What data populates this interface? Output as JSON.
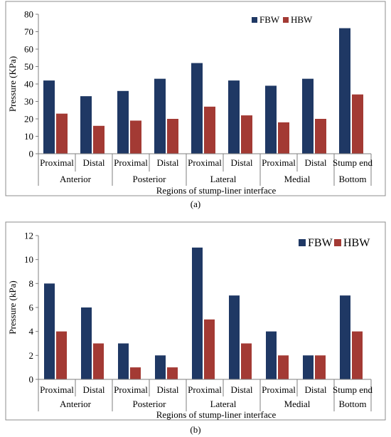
{
  "colors": {
    "FBW": "#1f3864",
    "HBW": "#a33a34",
    "axis": "#7f7f7f",
    "frame": "#8c8c8c"
  },
  "chart_data": [
    {
      "type": "bar",
      "panel_label": "(a)",
      "categories": [
        "Proximal",
        "Distal",
        "Proximal",
        "Distal",
        "Proximal",
        "Distal",
        "Proximal",
        "Distal",
        "Stump end"
      ],
      "groups": [
        {
          "label": "Anterior",
          "span": 2
        },
        {
          "label": "Posterior",
          "span": 2
        },
        {
          "label": "Lateral",
          "span": 2
        },
        {
          "label": "Medial",
          "span": 2
        },
        {
          "label": "Bottom",
          "span": 1
        }
      ],
      "series": [
        {
          "name": "FBW",
          "values": [
            42,
            33,
            36,
            43,
            52,
            42,
            39,
            43,
            72
          ]
        },
        {
          "name": "HBW",
          "values": [
            23,
            16,
            19,
            20,
            27,
            22,
            18,
            20,
            34
          ]
        }
      ],
      "xlabel": "Regions of stump-liner interface",
      "ylabel": "Pressure (KPa)",
      "ylim": [
        0,
        80
      ],
      "yticks": [
        0,
        10,
        20,
        30,
        40,
        50,
        60,
        70,
        80
      ],
      "grid": false,
      "legend": "top-right"
    },
    {
      "type": "bar",
      "panel_label": "(b)",
      "categories": [
        "Proximal",
        "Distal",
        "Proximal",
        "Distal",
        "Proximal",
        "Distal",
        "Proximal",
        "Distal",
        "Stump end"
      ],
      "groups": [
        {
          "label": "Anterior",
          "span": 2
        },
        {
          "label": "Posterior",
          "span": 2
        },
        {
          "label": "Lateral",
          "span": 2
        },
        {
          "label": "Medial",
          "span": 2
        },
        {
          "label": "Bottom",
          "span": 1
        }
      ],
      "series": [
        {
          "name": "FBW",
          "values": [
            8,
            6,
            3,
            2,
            11,
            7,
            4,
            2,
            7
          ]
        },
        {
          "name": "HBW",
          "values": [
            4,
            3,
            1,
            1,
            5,
            3,
            2,
            2,
            4
          ]
        }
      ],
      "xlabel": "Regions of stump-liner interface",
      "ylabel": "Pressure (kPa)",
      "ylim": [
        0,
        12
      ],
      "yticks": [
        0,
        2,
        4,
        6,
        8,
        10,
        12
      ],
      "grid": false,
      "legend": "top-right"
    }
  ]
}
